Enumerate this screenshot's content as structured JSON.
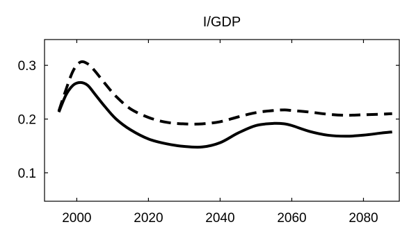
{
  "chart_data": {
    "type": "line",
    "title": "I/GDP",
    "xlabel": "",
    "ylabel": "",
    "xlim": [
      1991,
      2090
    ],
    "ylim": [
      0.047,
      0.348
    ],
    "xticks": [
      2000,
      2020,
      2040,
      2060,
      2080
    ],
    "yticks": [
      0.1,
      0.2,
      0.3
    ],
    "xtick_labels": [
      "2000",
      "2020",
      "2040",
      "2060",
      "2080"
    ],
    "ytick_labels": [
      "0.1",
      "0.2",
      "0.3"
    ],
    "grid": false,
    "series": [
      {
        "style": "dashed",
        "color": "#000000",
        "x": [
          1995,
          1997,
          1999,
          2001,
          2003,
          2005,
          2008,
          2011,
          2015,
          2020,
          2025,
          2030,
          2035,
          2040,
          2045,
          2050,
          2055,
          2058,
          2060,
          2065,
          2070,
          2075,
          2080,
          2085,
          2088
        ],
        "y": [
          0.215,
          0.255,
          0.29,
          0.306,
          0.303,
          0.29,
          0.265,
          0.242,
          0.219,
          0.203,
          0.194,
          0.191,
          0.191,
          0.195,
          0.204,
          0.212,
          0.216,
          0.217,
          0.216,
          0.213,
          0.209,
          0.207,
          0.208,
          0.209,
          0.21
        ]
      },
      {
        "style": "solid",
        "color": "#000000",
        "x": [
          1995,
          1997,
          1999,
          2001,
          2003,
          2005,
          2008,
          2011,
          2015,
          2020,
          2025,
          2030,
          2035,
          2040,
          2045,
          2050,
          2055,
          2058,
          2060,
          2065,
          2070,
          2075,
          2080,
          2085,
          2088
        ],
        "y": [
          0.213,
          0.245,
          0.263,
          0.268,
          0.263,
          0.247,
          0.222,
          0.2,
          0.18,
          0.163,
          0.154,
          0.149,
          0.148,
          0.156,
          0.174,
          0.188,
          0.192,
          0.191,
          0.188,
          0.177,
          0.17,
          0.168,
          0.17,
          0.174,
          0.176
        ]
      }
    ]
  }
}
